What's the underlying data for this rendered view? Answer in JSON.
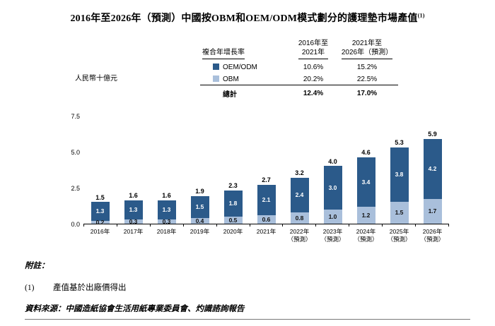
{
  "title": {
    "text": "2016年至2026年（預測）中國按OBM和OEM/ODM模式劃分的護理墊市場產值",
    "superscript": "(1)"
  },
  "y_axis_label": "人民幣十億元",
  "cagr_table": {
    "header": "複合年增長率",
    "col1_line1": "2016年至",
    "col1_line2": "2021年",
    "col2_line1": "2021年至",
    "col2_line2": "2026年（預測）",
    "rows": [
      {
        "label": "OEM/ODM",
        "swatch": "#2B5A8A",
        "col1": "10.6%",
        "col2": "15.2%"
      },
      {
        "label": "OBM",
        "swatch": "#A9BFDB",
        "col1": "20.2%",
        "col2": "22.5%"
      },
      {
        "label": "總計",
        "swatch": null,
        "col1": "12.4%",
        "col2": "17.0%"
      }
    ]
  },
  "chart_data": {
    "type": "bar",
    "stacked": true,
    "title": "2016年至2026年（預測）中國按OBM和OEM/ODM模式劃分的護理墊市場產值",
    "ylabel": "人民幣十億元",
    "ylim": [
      0,
      7.5
    ],
    "yticks": [
      "7.5",
      "5.0",
      "2.5",
      "0.0"
    ],
    "grid": false,
    "legend_position": "top",
    "categories": [
      "2016年",
      "2017年",
      "2018年",
      "2019年",
      "2020年",
      "2021年",
      "2022年",
      "2023年",
      "2024年",
      "2025年",
      "2026年"
    ],
    "category_sublabels": [
      "",
      "",
      "",
      "",
      "",
      "",
      "（預測）",
      "（預測）",
      "（預測）",
      "（預測）",
      "（預測）"
    ],
    "series": [
      {
        "name": "OEM/ODM",
        "color": "#2B5A8A",
        "label_color": "#ffffff",
        "values": [
          1.3,
          1.3,
          1.3,
          1.5,
          1.8,
          2.1,
          2.4,
          3.0,
          3.4,
          3.8,
          4.2
        ]
      },
      {
        "name": "OBM",
        "color": "#A9BFDB",
        "label_color": "#111111",
        "values": [
          0.2,
          0.3,
          0.3,
          0.4,
          0.5,
          0.6,
          0.8,
          1.0,
          1.2,
          1.5,
          1.7
        ]
      }
    ],
    "totals": [
      1.5,
      1.6,
      1.6,
      1.9,
      2.3,
      2.7,
      3.2,
      4.0,
      4.6,
      5.3,
      5.9
    ]
  },
  "notes": {
    "label": "附註：",
    "items": [
      {
        "num": "(1)",
        "text": "產值基於出廠價得出"
      }
    ],
    "source": "資料來源：中國造紙協會生活用紙專業委員會、灼識諮詢報告"
  }
}
